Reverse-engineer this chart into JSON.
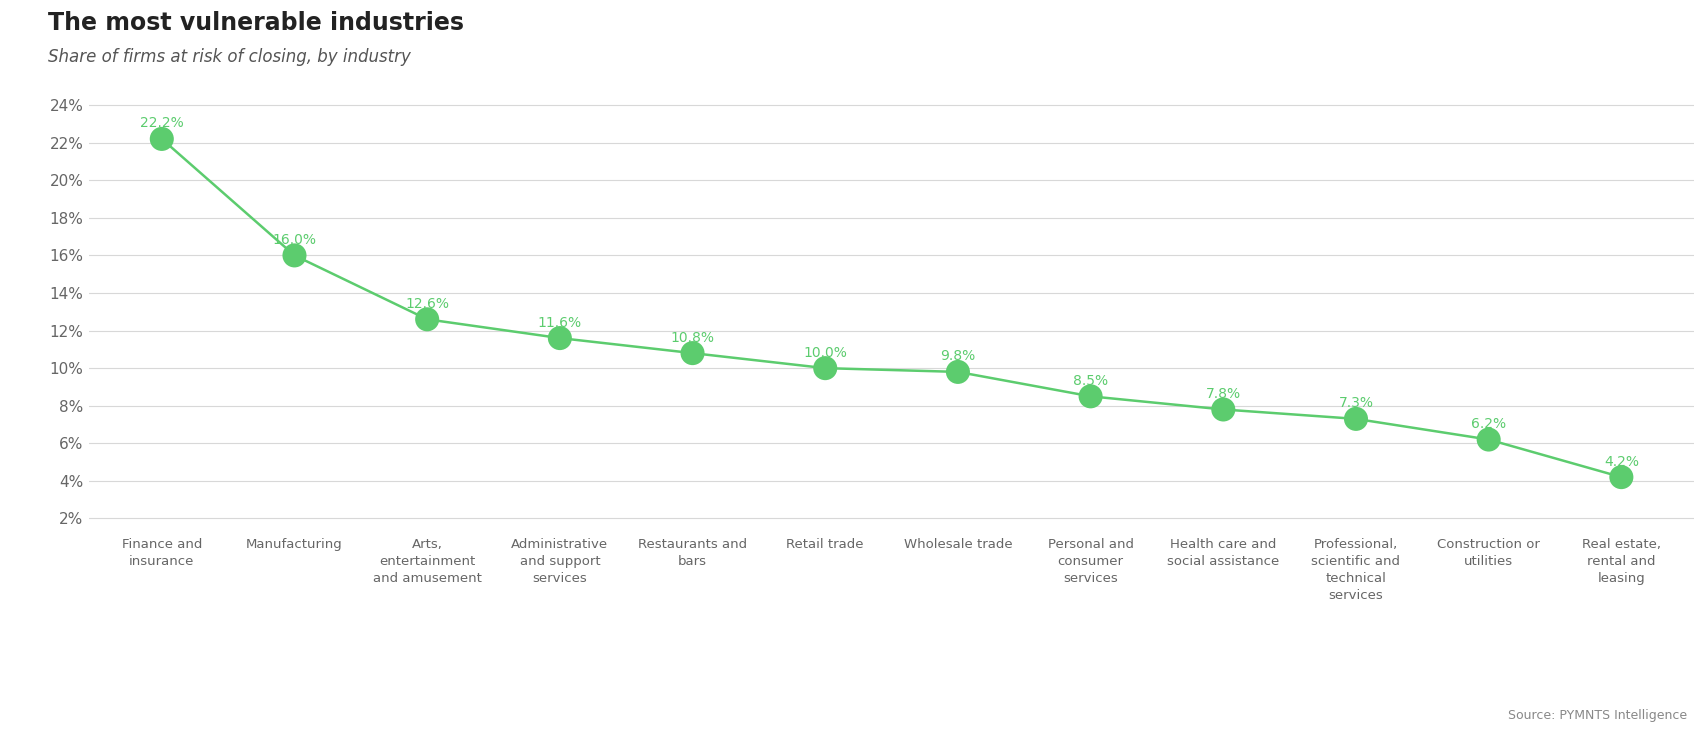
{
  "title": "The most vulnerable industries",
  "subtitle": "Share of firms at risk of closing, by industry",
  "source": "Source: PYMNTS Intelligence",
  "categories": [
    "Finance and\ninsurance",
    "Manufacturing",
    "Arts,\nentertainment\nand amusement",
    "Administrative\nand support\nservices",
    "Restaurants and\nbars",
    "Retail trade",
    "Wholesale trade",
    "Personal and\nconsumer\nservices",
    "Health care and\nsocial assistance",
    "Professional,\nscientific and\ntechnical\nservices",
    "Construction or\nutilities",
    "Real estate,\nrental and\nleasing"
  ],
  "values": [
    22.2,
    16.0,
    12.6,
    11.6,
    10.8,
    10.0,
    9.8,
    8.5,
    7.8,
    7.3,
    6.2,
    4.2
  ],
  "labels": [
    "22.2%",
    "16.0%",
    "12.6%",
    "11.6%",
    "10.8%",
    "10.0%",
    "9.8%",
    "8.5%",
    "7.8%",
    "7.3%",
    "6.2%",
    "4.2%"
  ],
  "line_color": "#5ccc6e",
  "dot_color": "#5ccc6e",
  "label_color": "#5ccc6e",
  "background_color": "#ffffff",
  "grid_color": "#d8d8d8",
  "tick_color": "#666666",
  "title_color": "#222222",
  "subtitle_color": "#555555",
  "source_color": "#888888",
  "ylim_min": 2,
  "ylim_max": 24,
  "yticks": [
    2,
    4,
    6,
    8,
    10,
    12,
    14,
    16,
    18,
    20,
    22,
    24
  ],
  "dot_size": 300,
  "line_width": 1.8,
  "title_fontsize": 17,
  "subtitle_fontsize": 12,
  "label_fontsize": 10,
  "tick_fontsize": 11,
  "category_fontsize": 9.5,
  "source_fontsize": 9
}
